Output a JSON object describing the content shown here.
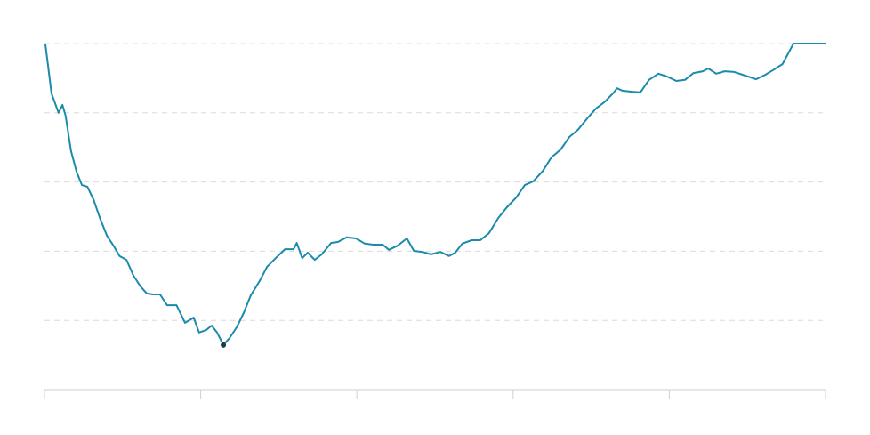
{
  "chart_data": {
    "type": "line",
    "color": "#1b8bab",
    "marker_color": "#1d3a48",
    "x": [
      0.1,
      0.9,
      1.8,
      2.3,
      2.7,
      3.4,
      4.1,
      4.8,
      5.5,
      6.3,
      7.1,
      8.0,
      8.9,
      9.6,
      10.5,
      11.4,
      12.3,
      13.1,
      13.9,
      14.8,
      15.7,
      16.9,
      18.0,
      19.1,
      19.8,
      20.7,
      21.4,
      22.1,
      22.9,
      23.7,
      24.6,
      25.5,
      26.4,
      27.6,
      28.5,
      29.6,
      30.8,
      31.9,
      32.3,
      33.0,
      33.7,
      34.6,
      35.5,
      36.7,
      37.6,
      38.7,
      39.9,
      41.0,
      42.1,
      43.3,
      44.1,
      45.2,
      46.4,
      47.3,
      48.4,
      49.5,
      50.7,
      51.8,
      52.6,
      53.5,
      54.7,
      55.8,
      56.9,
      58.1,
      59.2,
      60.4,
      61.5,
      62.6,
      63.8,
      64.9,
      66.1,
      67.2,
      68.3,
      69.5,
      70.6,
      71.8,
      72.9,
      73.3,
      74.0,
      75.2,
      76.3,
      77.4,
      78.6,
      79.7,
      80.9,
      82.0,
      83.1,
      84.3,
      85.0,
      86.0,
      87.1,
      88.3,
      89.4,
      91.1,
      92.3,
      93.4,
      94.5,
      95.9,
      100
    ],
    "values": [
      100,
      85.6,
      80,
      82.3,
      79.2,
      68.9,
      63.0,
      59.1,
      58.6,
      54.8,
      49.6,
      44.5,
      41.4,
      38.6,
      37.5,
      32.9,
      29.8,
      27.8,
      27.5,
      27.5,
      24.4,
      24.4,
      19.3,
      20.8,
      16.5,
      17.2,
      18.5,
      16.5,
      12.9,
      14.9,
      18.0,
      22.1,
      27.2,
      31.6,
      35.5,
      38.0,
      40.6,
      40.6,
      42.4,
      38.0,
      39.6,
      37.5,
      39.1,
      42.4,
      42.7,
      44.0,
      43.7,
      42.2,
      41.9,
      41.9,
      40.4,
      41.6,
      43.7,
      40.1,
      39.8,
      39.1,
      39.8,
      38.6,
      39.6,
      42.2,
      43.2,
      43.2,
      45.2,
      49.6,
      52.7,
      55.5,
      59.1,
      60.2,
      63.2,
      67.1,
      69.4,
      73.0,
      75.1,
      78.4,
      81.2,
      83.3,
      85.9,
      87.1,
      86.4,
      86.1,
      85.9,
      89.5,
      91.3,
      90.5,
      89.2,
      89.5,
      91.5,
      92.0,
      92.8,
      91.3,
      92.0,
      91.8,
      91.0,
      89.7,
      91.0,
      92.5,
      94.1,
      100,
      100
    ],
    "xlim": [
      0,
      100
    ],
    "xticks": [
      0,
      20,
      40,
      60,
      80,
      100
    ],
    "ylim": [
      0,
      100
    ],
    "yticks": [
      20,
      40,
      60,
      80,
      100
    ],
    "grid": true
  }
}
